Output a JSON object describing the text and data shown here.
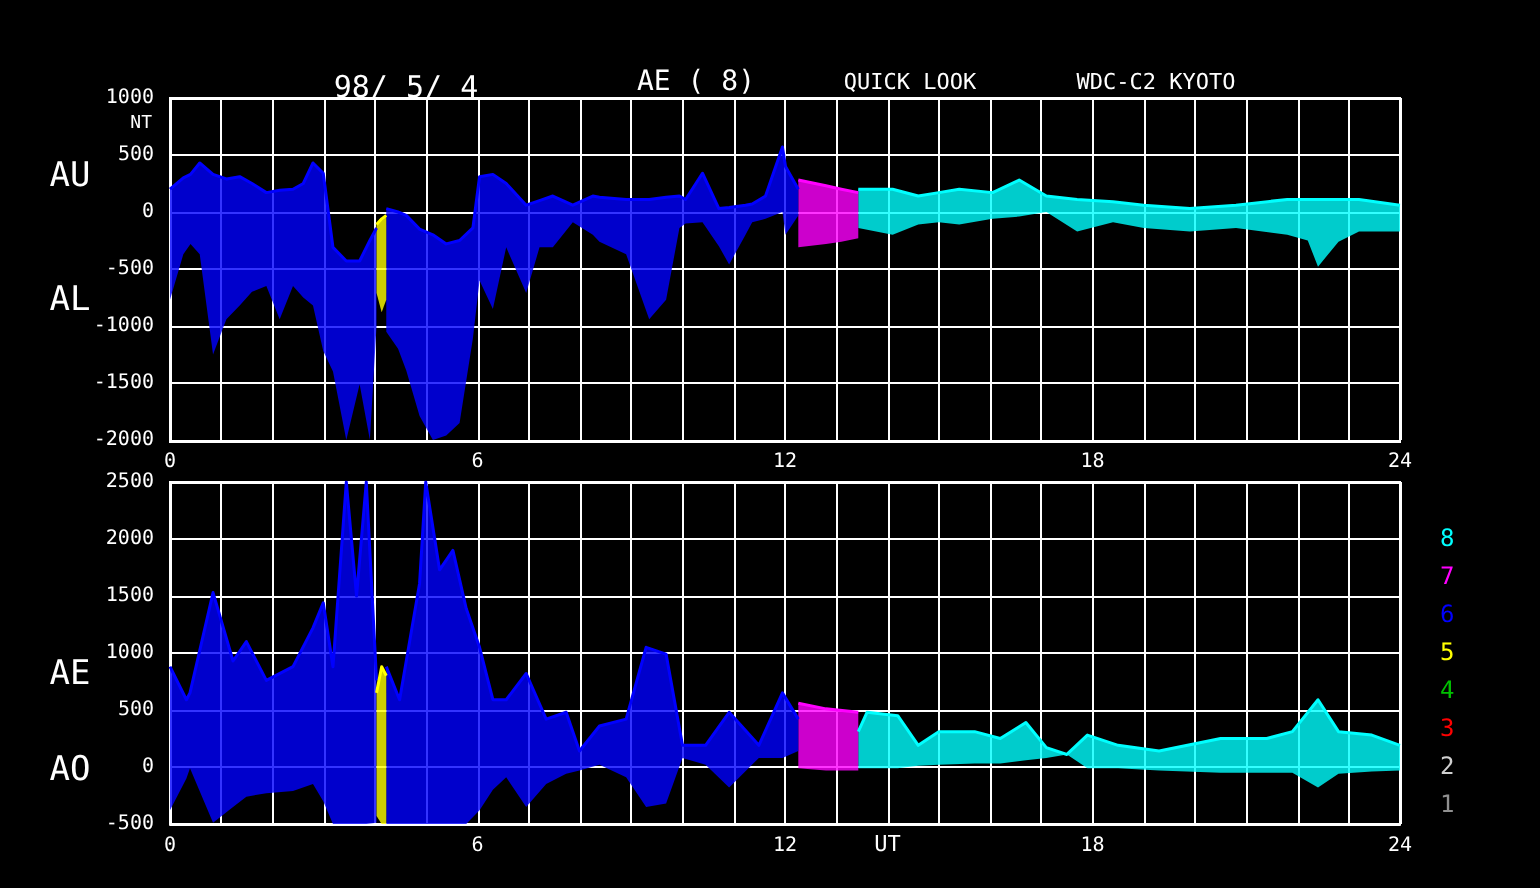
{
  "chart_data": [
    {
      "type": "line",
      "title": "98/ 5/ 4",
      "ylabel": "NT",
      "annotations": [
        "AE ( 8)",
        "QUICK LOOK",
        "WDC-C2 KYOTO",
        "AU",
        "AL"
      ],
      "xlim": [
        0,
        24
      ],
      "xticks": [
        0,
        {
          "value": 1,
          "label": null
        },
        {
          "value": 2,
          "label": null
        },
        {
          "value": 3,
          "label": null
        },
        {
          "value": 4,
          "label": null
        },
        {
          "value": 5,
          "label": null
        },
        6,
        {
          "value": 7,
          "label": null
        },
        {
          "value": 8,
          "label": null
        },
        {
          "value": 9,
          "label": null
        },
        {
          "value": 10,
          "label": null
        },
        {
          "value": 11,
          "label": null
        },
        12,
        {
          "value": 13,
          "label": null
        },
        {
          "value": 14,
          "label": null
        },
        {
          "value": 15,
          "label": null
        },
        {
          "value": 16,
          "label": null
        },
        {
          "value": 17,
          "label": null
        },
        18,
        {
          "value": 19,
          "label": null
        },
        {
          "value": 20,
          "label": null
        },
        {
          "value": 21,
          "label": null
        },
        {
          "value": 22,
          "label": null
        },
        {
          "value": 23,
          "label": null
        },
        24
      ],
      "ylim": [
        -2000,
        1000
      ],
      "yticks": [
        -2000,
        -1500,
        -1000,
        -500,
        0,
        500,
        1000
      ],
      "grid": true,
      "series": [
        {
          "color": "#00ffff",
          "x": [
            13.43,
            14.1,
            14.6,
            15.0,
            15.4,
            16.05,
            16.57,
            17.1,
            17.7,
            18.4,
            19.0,
            19.9,
            20.8,
            21.8,
            22.2,
            22.4,
            22.8,
            23.2,
            24
          ],
          "values": [
            200,
            200,
            140,
            170,
            200,
            170,
            280,
            140,
            110,
            90,
            60,
            30,
            60,
            110,
            110,
            110,
            110,
            110,
            60
          ],
          "upper": [
            200,
            200,
            140,
            170,
            200,
            170,
            280,
            140,
            110,
            90,
            60,
            30,
            60,
            110,
            110,
            110,
            110,
            110,
            60
          ],
          "lower": [
            -140,
            -200,
            -110,
            -90,
            -110,
            -60,
            -40,
            0,
            -170,
            -90,
            -140,
            -170,
            -140,
            -200,
            -250,
            -480,
            -260,
            -170,
            -170
          ]
        },
        {
          "color": "#ff00ff",
          "x": [
            12.26,
            12.8,
            13.1,
            13.43
          ],
          "values": [
            280,
            230,
            200,
            170
          ],
          "upper": [
            280,
            230,
            200,
            170
          ],
          "lower": [
            -310,
            -280,
            -260,
            -230
          ]
        },
        {
          "color": "#0000ff",
          "x": [
            0,
            0.26,
            0.4,
            0.58,
            0.84,
            1.1,
            1.36,
            1.6,
            1.88,
            2.14,
            2.4,
            2.6,
            2.79,
            2.99,
            3.18,
            3.44,
            3.7,
            3.9,
            4.03
          ],
          "values": [
            200,
            300,
            330,
            430,
            330,
            290,
            310,
            250,
            170,
            190,
            200,
            250,
            430,
            340,
            -310,
            -430,
            -430,
            -250,
            -140
          ],
          "upper": [
            200,
            300,
            330,
            430,
            330,
            290,
            310,
            250,
            170,
            190,
            200,
            250,
            430,
            340,
            -310,
            -430,
            -430,
            -250,
            -140
          ],
          "lower": [
            -770,
            -370,
            -280,
            -370,
            -1250,
            -940,
            -820,
            -700,
            -650,
            -940,
            -650,
            -750,
            -820,
            -1220,
            -1400,
            -2000,
            -1510,
            -2000,
            -1000
          ]
        },
        {
          "color": "#0000ff",
          "x": [
            4.22,
            4.45,
            4.61,
            4.87,
            5.13,
            5.39,
            5.65,
            5.91,
            6.04,
            6.3,
            6.56,
            6.95,
            7.21,
            7.47,
            7.86,
            8.25,
            8.38,
            8.9,
            9.35,
            9.68,
            9.94,
            10.06,
            10.39,
            10.71,
            10.91,
            11.23,
            11.36,
            11.62,
            11.95,
            12.01,
            12.26
          ],
          "values": [
            30,
            0,
            -30,
            -150,
            -200,
            -280,
            -250,
            -140,
            310,
            330,
            250,
            60,
            100,
            140,
            60,
            140,
            130,
            110,
            110,
            130,
            140,
            110,
            340,
            30,
            40,
            60,
            70,
            140,
            570,
            400,
            200
          ],
          "upper": [
            30,
            0,
            -30,
            -150,
            -200,
            -280,
            -250,
            -140,
            310,
            330,
            250,
            60,
            100,
            140,
            60,
            140,
            130,
            110,
            110,
            130,
            140,
            110,
            340,
            30,
            40,
            60,
            70,
            140,
            570,
            400,
            200
          ],
          "lower": [
            -1050,
            -1200,
            -1390,
            -1790,
            -2000,
            -1960,
            -1850,
            -1110,
            -600,
            -850,
            -310,
            -710,
            -310,
            -310,
            -90,
            -200,
            -260,
            -370,
            -940,
            -770,
            -140,
            -100,
            -90,
            -300,
            -460,
            -200,
            -90,
            -60,
            0,
            -200,
            -30
          ]
        },
        {
          "color": "#ffff00",
          "x": [
            4.03,
            4.13,
            4.22
          ],
          "values": [
            -110,
            -60,
            -30
          ],
          "upper": [
            -110,
            -60,
            -30
          ],
          "lower": [
            -710,
            -880,
            -770
          ]
        }
      ]
    },
    {
      "type": "line",
      "xlabel": "UT",
      "annotations": [
        "AE",
        "AO"
      ],
      "legend": "right",
      "xlim": [
        0,
        24
      ],
      "xticks": [
        0,
        {
          "value": 1,
          "label": null
        },
        {
          "value": 2,
          "label": null
        },
        {
          "value": 3,
          "label": null
        },
        {
          "value": 4,
          "label": null
        },
        {
          "value": 5,
          "label": null
        },
        6,
        {
          "value": 7,
          "label": null
        },
        {
          "value": 8,
          "label": null
        },
        {
          "value": 9,
          "label": null
        },
        {
          "value": 10,
          "label": null
        },
        {
          "value": 11,
          "label": null
        },
        12,
        {
          "value": 13,
          "label": null
        },
        {
          "value": 14,
          "label": null
        },
        {
          "value": 15,
          "label": null
        },
        {
          "value": 16,
          "label": null
        },
        {
          "value": 17,
          "label": null
        },
        18,
        {
          "value": 19,
          "label": null
        },
        {
          "value": 20,
          "label": null
        },
        {
          "value": 21,
          "label": null
        },
        {
          "value": 22,
          "label": null
        },
        {
          "value": 23,
          "label": null
        },
        24
      ],
      "ylim": [
        -500,
        2500
      ],
      "yticks": [
        -500,
        0,
        500,
        1000,
        1500,
        2000,
        2500
      ],
      "grid": true,
      "series": [
        {
          "name": "8",
          "color": "#00ffff",
          "x": [
            13.43,
            13.6,
            14.2,
            14.6,
            15.0,
            15.7,
            16.2,
            16.7,
            17.1,
            17.5,
            17.9,
            18.5,
            19.3,
            20.5,
            21.4,
            21.9,
            22.4,
            22.8,
            23.45,
            24
          ],
          "values": [
            310,
            480,
            450,
            190,
            310,
            310,
            250,
            390,
            170,
            110,
            280,
            190,
            140,
            250,
            250,
            310,
            590,
            310,
            280,
            190
          ],
          "upper": [
            310,
            480,
            450,
            190,
            310,
            310,
            250,
            390,
            170,
            110,
            280,
            190,
            140,
            250,
            250,
            310,
            590,
            310,
            280,
            190
          ],
          "lower": [
            -10,
            -10,
            -10,
            10,
            20,
            30,
            30,
            60,
            80,
            110,
            -10,
            -10,
            -30,
            -50,
            -50,
            -50,
            -180,
            -60,
            -40,
            -30
          ]
        },
        {
          "name": "7",
          "color": "#ff00ff",
          "x": [
            12.26,
            12.8,
            13.43
          ],
          "values": [
            560,
            510,
            480
          ],
          "upper": [
            560,
            510,
            480
          ],
          "lower": [
            -10,
            -30,
            -30
          ]
        },
        {
          "name": "6",
          "color": "#0000ff",
          "x": [
            0,
            0.32,
            0.39,
            0.84,
            1.23,
            1.49,
            1.88,
            2.4,
            2.79,
            2.99,
            3.18,
            3.44,
            3.64,
            3.83,
            4.03
          ],
          "values": [
            880,
            590,
            650,
            1530,
            930,
            1100,
            760,
            880,
            1220,
            1440,
            880,
            2500,
            1500,
            2500,
            760
          ],
          "upper": [
            880,
            590,
            650,
            1530,
            930,
            1100,
            760,
            880,
            1220,
            1440,
            880,
            2500,
            1500,
            2500,
            760
          ],
          "lower": [
            -380,
            -100,
            -10,
            -490,
            -350,
            -260,
            -230,
            -210,
            -150,
            -300,
            -500,
            -500,
            -500,
            -500,
            -490
          ]
        },
        {
          "color": "#0000ff",
          "x": [
            4.22,
            4.48,
            4.87,
            4.99,
            5.26,
            5.52,
            5.78,
            6.04,
            6.3,
            6.56,
            6.95,
            7.34,
            7.73,
            7.99,
            8.38,
            8.9,
            9.29,
            9.68,
            10.0,
            10.45,
            10.91,
            11.49,
            11.95,
            12.26
          ],
          "values": [
            880,
            590,
            1610,
            2500,
            1730,
            1900,
            1390,
            1050,
            590,
            590,
            820,
            420,
            480,
            140,
            360,
            420,
            1050,
            990,
            190,
            190,
            480,
            190,
            650,
            420
          ],
          "upper": [
            880,
            590,
            1610,
            2500,
            1730,
            1900,
            1390,
            1050,
            590,
            590,
            820,
            420,
            480,
            140,
            360,
            420,
            1050,
            990,
            190,
            190,
            480,
            190,
            650,
            420
          ],
          "lower": [
            -500,
            -500,
            -500,
            -500,
            -500,
            -500,
            -500,
            -380,
            -200,
            -90,
            -350,
            -150,
            -60,
            -30,
            20,
            -90,
            -350,
            -320,
            80,
            20,
            -180,
            80,
            80,
            140
          ]
        },
        {
          "name": "5",
          "color": "#ffff00",
          "x": [
            4.03,
            4.13,
            4.22
          ],
          "values": [
            650,
            880,
            800
          ],
          "upper": [
            650,
            880,
            800
          ],
          "lower": [
            -430,
            -500,
            -500
          ]
        },
        {
          "name": "4",
          "color": "#00c000"
        },
        {
          "name": "3",
          "color": "#ff0000"
        },
        {
          "name": "2",
          "color": "#d0d0d0"
        },
        {
          "name": "1",
          "color": "#909090"
        }
      ]
    }
  ]
}
